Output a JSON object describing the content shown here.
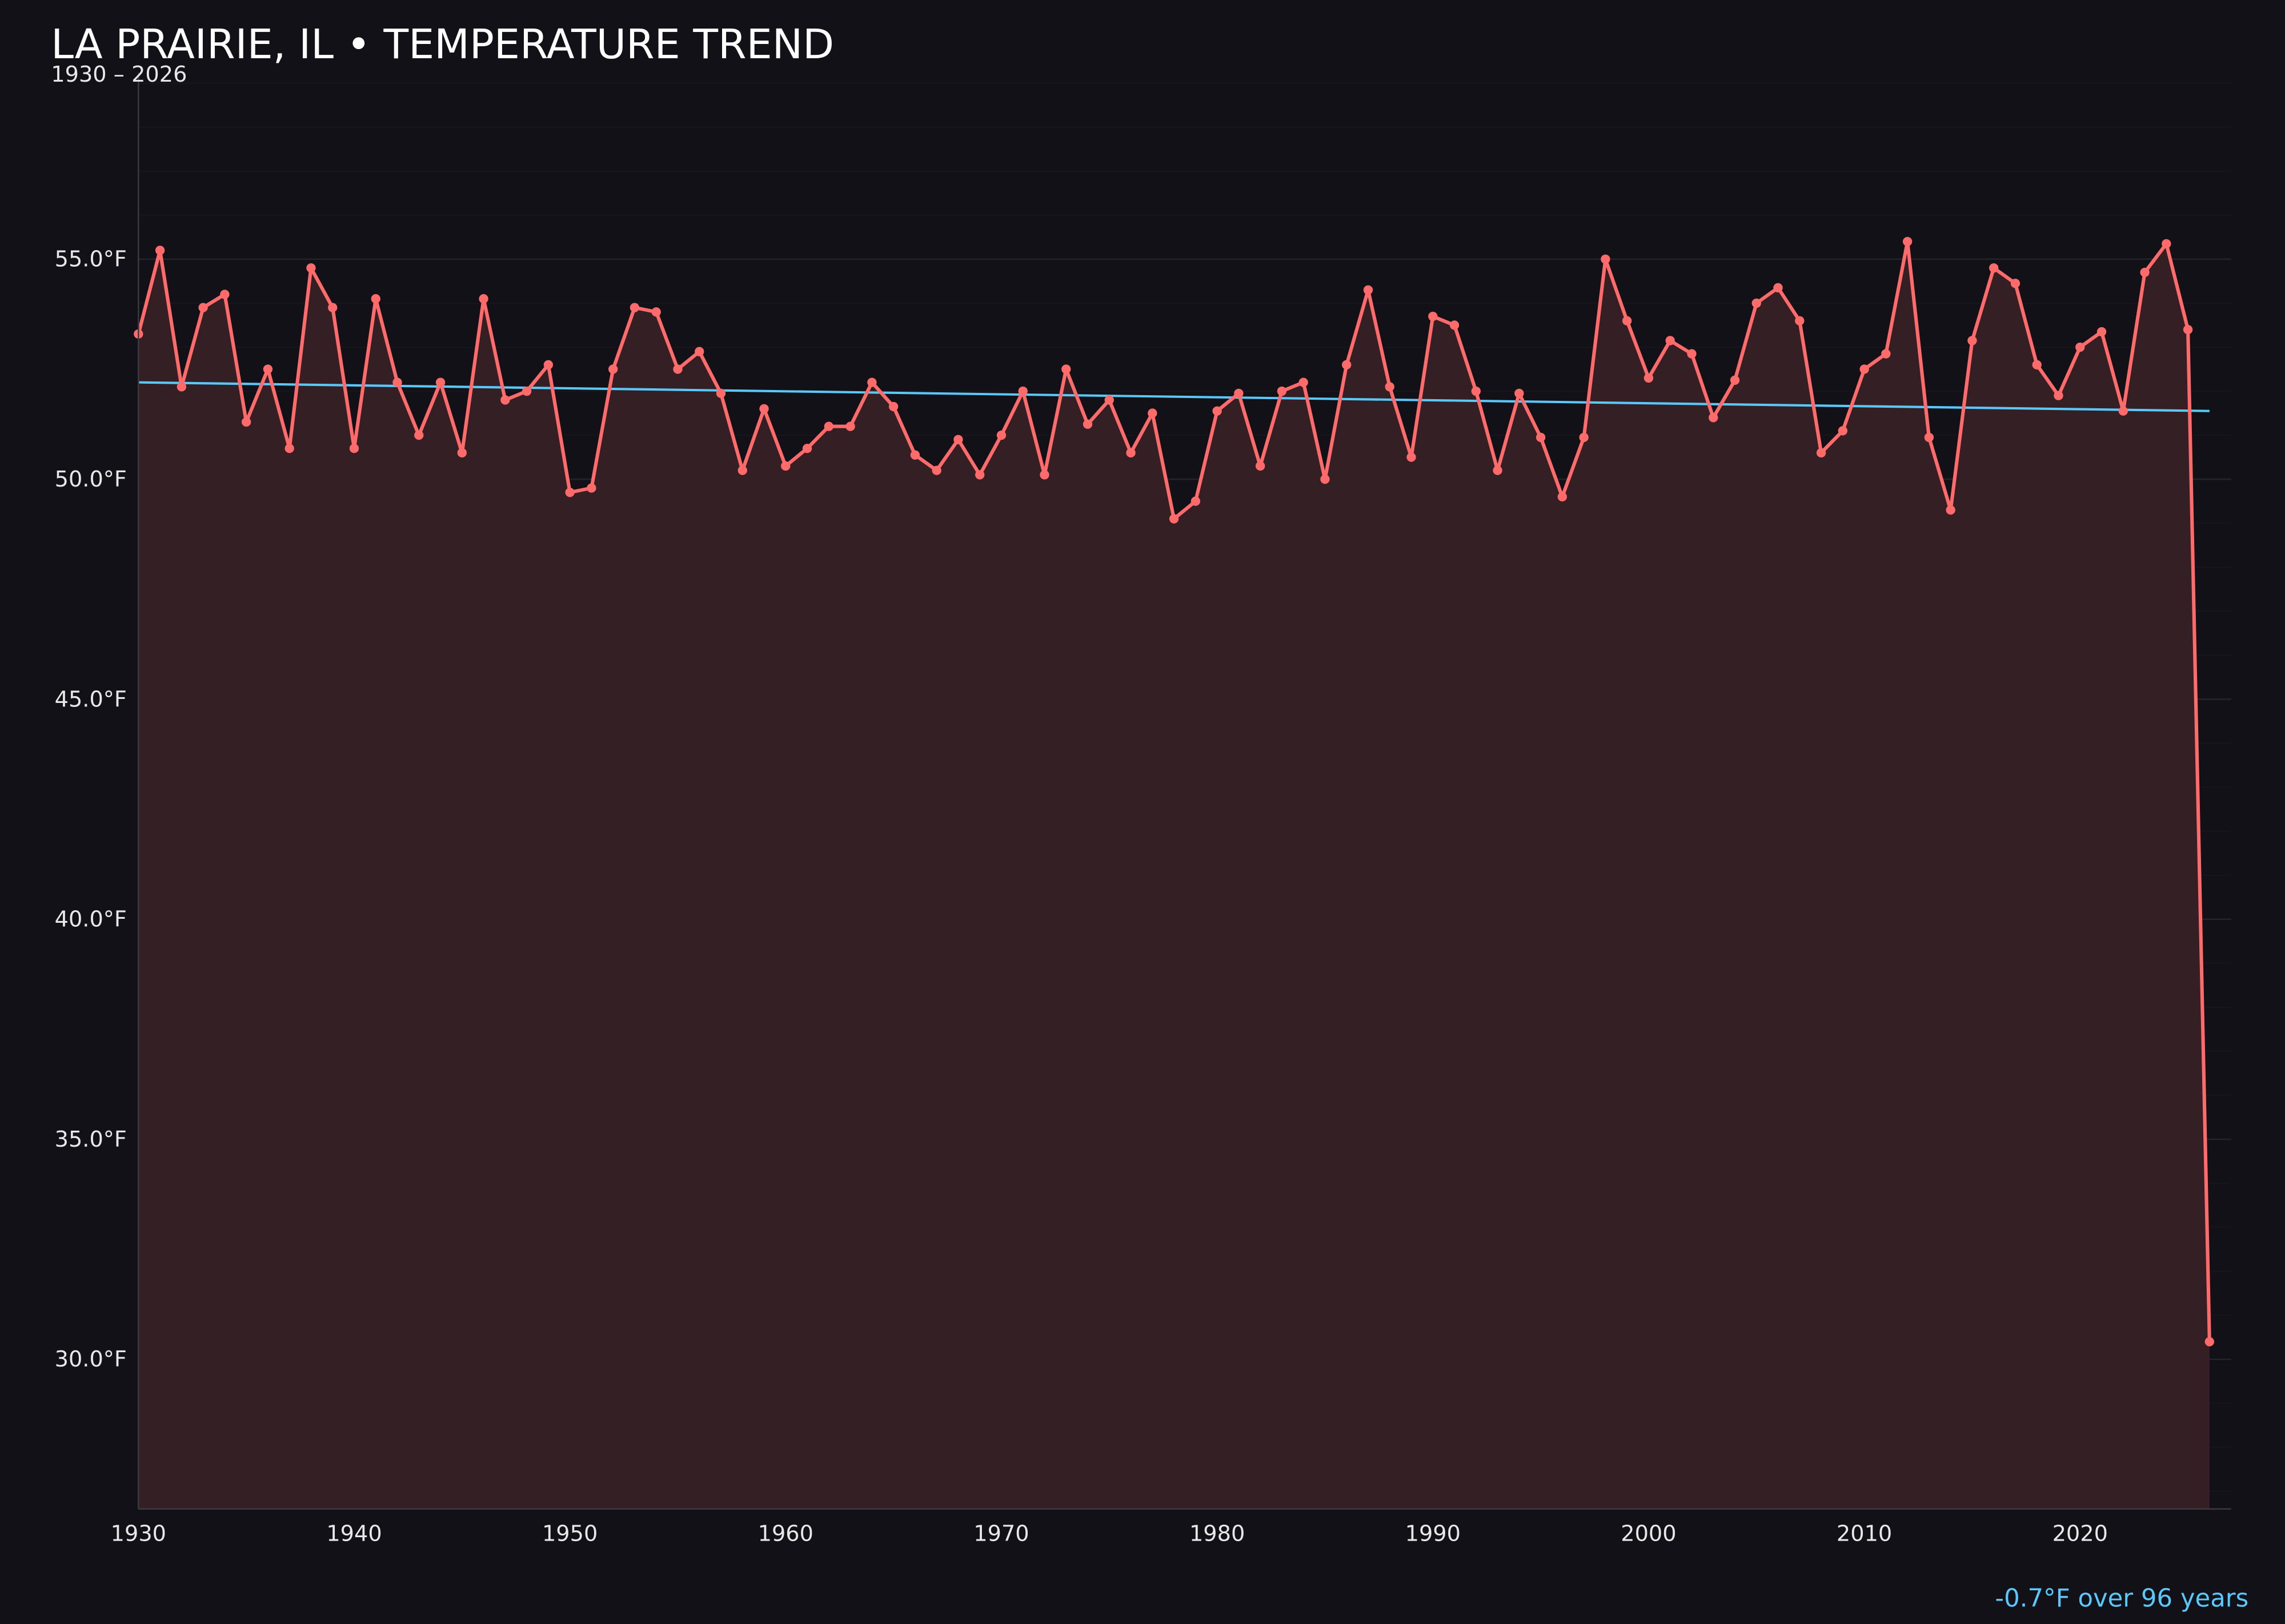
{
  "title": "LA PRAIRIE, IL • TEMPERATURE TREND",
  "subtitle": "1930 – 2026",
  "footer_note": "-0.7°F over 96 years",
  "colors": {
    "background": "#121117",
    "series": "#ff6b6b",
    "fill": "#341f25",
    "trend": "#5ac8fa",
    "grid": "#26242b",
    "footer": "#5ac8fa"
  },
  "chart_data": {
    "type": "line",
    "title": "LA PRAIRIE, IL • TEMPERATURE TREND",
    "subtitle": "1930 – 2026",
    "xlabel": "",
    "ylabel": "",
    "xlim": [
      1930,
      2027
    ],
    "ylim": [
      26.6,
      59.4
    ],
    "grid": true,
    "area_fill": true,
    "x_ticks": [
      "1930",
      "1940",
      "1950",
      "1960",
      "1970",
      "1980",
      "1990",
      "2000",
      "2010",
      "2020"
    ],
    "y_ticks": [
      "30.0°F",
      "35.0°F",
      "40.0°F",
      "45.0°F",
      "50.0°F",
      "55.0°F"
    ],
    "x": [
      1930,
      1931,
      1932,
      1933,
      1934,
      1935,
      1936,
      1937,
      1938,
      1939,
      1940,
      1941,
      1942,
      1943,
      1944,
      1945,
      1946,
      1947,
      1948,
      1949,
      1950,
      1951,
      1952,
      1953,
      1954,
      1955,
      1956,
      1957,
      1958,
      1959,
      1960,
      1961,
      1962,
      1963,
      1964,
      1965,
      1966,
      1967,
      1968,
      1969,
      1970,
      1971,
      1972,
      1973,
      1974,
      1975,
      1976,
      1977,
      1978,
      1979,
      1980,
      1981,
      1982,
      1983,
      1984,
      1985,
      1986,
      1987,
      1988,
      1989,
      1990,
      1991,
      1992,
      1993,
      1994,
      1995,
      1996,
      1997,
      1998,
      1999,
      2000,
      2001,
      2002,
      2003,
      2004,
      2005,
      2006,
      2007,
      2008,
      2009,
      2010,
      2011,
      2012,
      2013,
      2014,
      2015,
      2016,
      2017,
      2018,
      2019,
      2020,
      2021,
      2022,
      2023,
      2024,
      2025,
      2026
    ],
    "series": [
      {
        "values": [
          53.3,
          55.2,
          52.1,
          53.9,
          54.2,
          51.3,
          52.5,
          50.7,
          54.8,
          53.9,
          50.7,
          54.1,
          52.2,
          51.0,
          52.2,
          50.6,
          54.1,
          51.8,
          52.0,
          52.6,
          49.7,
          49.8,
          52.5,
          53.9,
          53.8,
          52.5,
          52.9,
          51.95,
          50.2,
          51.6,
          50.3,
          50.7,
          51.2,
          51.2,
          52.2,
          51.65,
          50.55,
          50.2,
          50.9,
          50.1,
          51.0,
          52.0,
          50.1,
          52.5,
          51.25,
          51.8,
          50.6,
          51.5,
          49.1,
          49.5,
          51.55,
          51.95,
          50.3,
          52.0,
          52.2,
          50.0,
          52.6,
          54.3,
          52.1,
          50.5,
          53.7,
          53.5,
          52.0,
          50.2,
          51.95,
          50.95,
          49.6,
          50.95,
          55.0,
          53.6,
          52.3,
          53.15,
          52.85,
          51.4,
          52.25,
          54.0,
          54.35,
          53.6,
          50.6,
          51.1,
          52.5,
          52.85,
          55.4,
          50.95,
          49.3,
          53.15,
          54.8,
          54.45,
          52.6,
          51.9,
          53.0,
          53.35,
          51.55,
          54.7,
          55.35,
          53.4,
          30.4
        ]
      }
    ],
    "trend_line": {
      "x": [
        1930,
        2026
      ],
      "y": [
        52.2,
        51.55
      ]
    }
  }
}
